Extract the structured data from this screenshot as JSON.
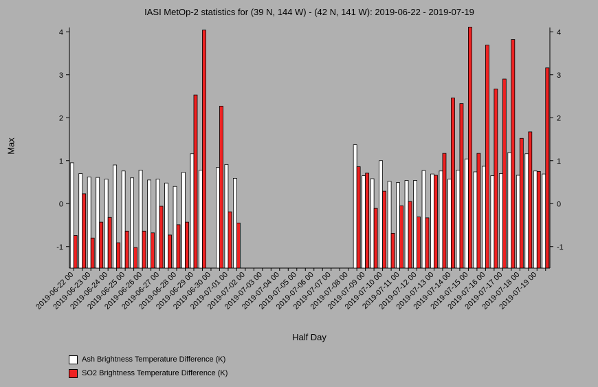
{
  "chart_data": {
    "type": "bar",
    "title": "IASI MetOp-2 statistics for (39 N, 144 W) - (42 N, 141 W): 2019-06-22 - 2019-07-19",
    "xlabel": "Half Day",
    "ylabel": "Max",
    "ylim": [
      -1.5,
      4.1
    ],
    "yticks": [
      "-1",
      "0",
      "1",
      "2",
      "3",
      "4"
    ],
    "categories": [
      "2019-06-22 00",
      "2019-06-22 12",
      "2019-06-23 00",
      "2019-06-23 12",
      "2019-06-24 00",
      "2019-06-24 12",
      "2019-06-25 00",
      "2019-06-25 12",
      "2019-06-26 00",
      "2019-06-26 12",
      "2019-06-27 00",
      "2019-06-27 12",
      "2019-06-28 00",
      "2019-06-28 12",
      "2019-06-29 00",
      "2019-06-29 12",
      "2019-06-30 00",
      "2019-06-30 12",
      "2019-07-01 00",
      "2019-07-01 12",
      "2019-07-02 00",
      "2019-07-02 12",
      "2019-07-03 00",
      "2019-07-03 12",
      "2019-07-04 00",
      "2019-07-04 12",
      "2019-07-05 00",
      "2019-07-05 12",
      "2019-07-06 00",
      "2019-07-06 12",
      "2019-07-07 00",
      "2019-07-07 12",
      "2019-07-08 00",
      "2019-07-08 12",
      "2019-07-09 00",
      "2019-07-09 12",
      "2019-07-10 00",
      "2019-07-10 12",
      "2019-07-11 00",
      "2019-07-11 12",
      "2019-07-12 00",
      "2019-07-12 12",
      "2019-07-13 00",
      "2019-07-13 12",
      "2019-07-14 00",
      "2019-07-14 12",
      "2019-07-15 00",
      "2019-07-15 12",
      "2019-07-16 00",
      "2019-07-16 12",
      "2019-07-17 00",
      "2019-07-17 12",
      "2019-07-18 00",
      "2019-07-18 12",
      "2019-07-19 00",
      "2019-07-19 12"
    ],
    "tick_labels": [
      "2019-06-22 00",
      "2019-06-23 00",
      "2019-06-24 00",
      "2019-06-25 00",
      "2019-06-26 00",
      "2019-06-27 00",
      "2019-06-28 00",
      "2019-06-29 00",
      "2019-06-30 00",
      "2019-07-01 00",
      "2019-07-02 00",
      "2019-07-03 00",
      "2019-07-04 00",
      "2019-07-05 00",
      "2019-07-06 00",
      "2019-07-07 00",
      "2019-07-08 00",
      "2019-07-09 00",
      "2019-07-10 00",
      "2019-07-11 00",
      "2019-07-12 00",
      "2019-07-13 00",
      "2019-07-14 00",
      "2019-07-15 00",
      "2019-07-16 00",
      "2019-07-17 00",
      "2019-07-18 00",
      "2019-07-19 00"
    ],
    "series": [
      {
        "name": "Ash Brightness Temperature Difference (K)",
        "color": "#ffffff",
        "values": [
          0.95,
          0.7,
          0.62,
          0.61,
          0.57,
          0.9,
          0.76,
          0.6,
          0.78,
          0.55,
          0.57,
          0.48,
          0.4,
          0.73,
          1.16,
          0.78,
          null,
          0.84,
          0.91,
          0.59,
          null,
          null,
          null,
          null,
          null,
          null,
          null,
          null,
          null,
          null,
          null,
          null,
          null,
          1.37,
          0.65,
          0.58,
          1.0,
          0.52,
          0.49,
          0.54,
          0.54,
          0.77,
          0.69,
          0.76,
          0.57,
          0.78,
          1.04,
          0.74,
          0.87,
          0.65,
          0.7,
          1.19,
          0.66,
          1.16,
          0.76,
          0.69
        ]
      },
      {
        "name": "SO2 Brightness Temperature Difference (K)",
        "color": "#ee2222",
        "values": [
          -0.74,
          0.23,
          -0.8,
          -0.43,
          -0.32,
          -0.91,
          -0.64,
          -1.02,
          -0.64,
          -0.68,
          -0.06,
          -0.73,
          -0.49,
          -0.43,
          2.53,
          4.04,
          null,
          2.27,
          -0.19,
          -0.45,
          null,
          null,
          null,
          null,
          null,
          null,
          null,
          null,
          null,
          null,
          null,
          null,
          null,
          0.86,
          0.71,
          -0.11,
          0.29,
          -0.69,
          -0.05,
          0.05,
          -0.31,
          -0.33,
          0.66,
          1.17,
          2.46,
          2.33,
          4.11,
          1.17,
          3.69,
          2.67,
          2.9,
          3.82,
          1.52,
          1.67,
          0.75,
          3.16
        ]
      }
    ],
    "grid": false,
    "legend_position": "bottom-left"
  }
}
